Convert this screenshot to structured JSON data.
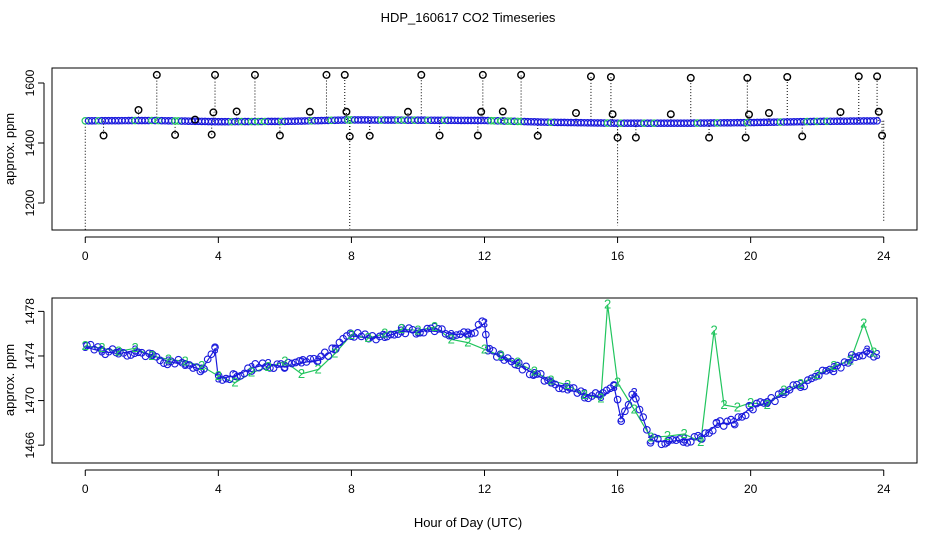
{
  "chart_data": [
    {
      "type": "scatter",
      "panel": "top",
      "title": "HDP_160617  CO2 Timeseries",
      "xlabel": "",
      "ylabel": "approx. ppm",
      "xlim": [
        -1,
        25
      ],
      "ylim": [
        1110,
        1650
      ],
      "xticks": [
        0,
        4,
        8,
        12,
        16,
        20,
        24
      ],
      "yticks": [
        1200,
        1400,
        1600
      ],
      "grid": false,
      "colors": {
        "outlier": "#000000",
        "series1": "#1a1adc",
        "series2": "#22c55e",
        "drop_line": "#000000"
      },
      "baseline": [
        [
          0,
          1474
        ],
        [
          2,
          1475
        ],
        [
          4,
          1471
        ],
        [
          6,
          1472
        ],
        [
          8,
          1477
        ],
        [
          10,
          1476
        ],
        [
          12,
          1475
        ],
        [
          14,
          1469
        ],
        [
          16,
          1466
        ],
        [
          18,
          1466
        ],
        [
          20,
          1468
        ],
        [
          22,
          1472
        ],
        [
          24,
          1474
        ]
      ],
      "outliers_high": [
        [
          1.6,
          1510
        ],
        [
          2.15,
          1627
        ],
        [
          3.3,
          1478
        ],
        [
          3.85,
          1502
        ],
        [
          3.9,
          1627
        ],
        [
          4.55,
          1505
        ],
        [
          5.1,
          1627
        ],
        [
          6.75,
          1504
        ],
        [
          7.25,
          1627
        ],
        [
          7.8,
          1627
        ],
        [
          7.85,
          1504
        ],
        [
          9.7,
          1504
        ],
        [
          10.1,
          1627
        ],
        [
          11.9,
          1504
        ],
        [
          11.95,
          1627
        ],
        [
          12.55,
          1505
        ],
        [
          13.1,
          1627
        ],
        [
          14.75,
          1500
        ],
        [
          15.2,
          1622
        ],
        [
          15.8,
          1620
        ],
        [
          15.85,
          1496
        ],
        [
          17.6,
          1496
        ],
        [
          18.2,
          1617
        ],
        [
          19.9,
          1617
        ],
        [
          19.95,
          1495
        ],
        [
          20.55,
          1500
        ],
        [
          21.1,
          1620
        ],
        [
          22.7,
          1503
        ],
        [
          23.25,
          1622
        ],
        [
          23.8,
          1622
        ],
        [
          23.85,
          1504
        ]
      ],
      "outliers_low": [
        [
          0.55,
          1425
        ],
        [
          2.7,
          1427
        ],
        [
          3.8,
          1428
        ],
        [
          5.85,
          1425
        ],
        [
          7.95,
          1422
        ],
        [
          8.55,
          1424
        ],
        [
          10.65,
          1425
        ],
        [
          11.8,
          1425
        ],
        [
          13.6,
          1424
        ],
        [
          16.0,
          1418
        ],
        [
          16.55,
          1418
        ],
        [
          18.75,
          1418
        ],
        [
          19.85,
          1418
        ],
        [
          21.55,
          1422
        ],
        [
          23.95,
          1425
        ]
      ],
      "drops": [
        [
          0,
          1110
        ],
        [
          7.95,
          1115
        ],
        [
          16.0,
          1125
        ],
        [
          24.0,
          1135
        ]
      ]
    },
    {
      "type": "line",
      "panel": "bottom",
      "xlabel": "Hour of Day (UTC)",
      "ylabel": "approx. ppm",
      "xlim": [
        -1,
        25
      ],
      "ylim": [
        1464.4,
        1479.2
      ],
      "xticks": [
        0,
        4,
        8,
        12,
        16,
        20,
        24
      ],
      "yticks": [
        1466,
        1470,
        1474,
        1478
      ],
      "grid": false,
      "point_label_series1": "3",
      "point_label_series2": "2",
      "series": [
        {
          "name": "3",
          "color": "#1a1adc",
          "points": [
            [
              0.0,
              1474.8
            ],
            [
              0.5,
              1474.4
            ],
            [
              1.0,
              1474.2
            ],
            [
              1.5,
              1474.5
            ],
            [
              2.0,
              1474.1
            ],
            [
              2.5,
              1473.5
            ],
            [
              3.0,
              1473.2
            ],
            [
              3.5,
              1472.8
            ],
            [
              3.9,
              1474.6
            ],
            [
              4.0,
              1472.0
            ],
            [
              4.5,
              1472.2
            ],
            [
              5.0,
              1472.9
            ],
            [
              5.5,
              1473.3
            ],
            [
              6.0,
              1473.0
            ],
            [
              6.5,
              1473.4
            ],
            [
              7.0,
              1473.6
            ],
            [
              7.5,
              1474.6
            ],
            [
              8.0,
              1475.8
            ],
            [
              8.5,
              1475.6
            ],
            [
              9.0,
              1475.7
            ],
            [
              9.5,
              1476.2
            ],
            [
              10.0,
              1476.1
            ],
            [
              10.5,
              1476.5
            ],
            [
              11.0,
              1475.9
            ],
            [
              11.5,
              1476.0
            ],
            [
              12.0,
              1476.9
            ],
            [
              12.1,
              1474.5
            ],
            [
              12.5,
              1473.9
            ],
            [
              13.0,
              1473.2
            ],
            [
              13.5,
              1472.4
            ],
            [
              14.0,
              1471.6
            ],
            [
              14.5,
              1471.0
            ],
            [
              15.0,
              1470.6
            ],
            [
              15.5,
              1470.3
            ],
            [
              15.9,
              1471.2
            ],
            [
              16.1,
              1468.4
            ],
            [
              16.5,
              1470.7
            ],
            [
              17.0,
              1466.4
            ],
            [
              17.5,
              1466.3
            ],
            [
              18.0,
              1466.5
            ],
            [
              18.5,
              1466.6
            ],
            [
              19.0,
              1467.9
            ],
            [
              19.5,
              1468.0
            ],
            [
              20.0,
              1469.4
            ],
            [
              20.5,
              1469.8
            ],
            [
              21.0,
              1470.6
            ],
            [
              21.5,
              1471.4
            ],
            [
              22.0,
              1472.3
            ],
            [
              22.5,
              1472.9
            ],
            [
              23.0,
              1473.7
            ],
            [
              23.5,
              1474.5
            ],
            [
              23.8,
              1474.1
            ]
          ]
        },
        {
          "name": "2",
          "color": "#22c55e",
          "points": [
            [
              0.0,
              1474.9
            ],
            [
              0.5,
              1474.7
            ],
            [
              1.0,
              1474.4
            ],
            [
              1.5,
              1474.7
            ],
            [
              2.0,
              1474.0
            ],
            [
              2.5,
              1473.7
            ],
            [
              3.0,
              1473.5
            ],
            [
              3.5,
              1473.1
            ],
            [
              4.0,
              1472.2
            ],
            [
              4.5,
              1471.6
            ],
            [
              5.0,
              1472.5
            ],
            [
              5.5,
              1473.0
            ],
            [
              6.0,
              1473.5
            ],
            [
              6.5,
              1472.4
            ],
            [
              7.0,
              1472.8
            ],
            [
              7.5,
              1474.2
            ],
            [
              8.0,
              1475.9
            ],
            [
              8.5,
              1475.6
            ],
            [
              9.0,
              1476.0
            ],
            [
              9.5,
              1476.4
            ],
            [
              10.0,
              1476.3
            ],
            [
              10.5,
              1476.6
            ],
            [
              11.0,
              1475.5
            ],
            [
              11.5,
              1475.2
            ],
            [
              12.0,
              1474.6
            ],
            [
              12.5,
              1474.0
            ],
            [
              13.0,
              1473.4
            ],
            [
              13.5,
              1472.6
            ],
            [
              14.0,
              1471.8
            ],
            [
              14.5,
              1471.4
            ],
            [
              15.0,
              1470.5
            ],
            [
              15.5,
              1470.2
            ],
            [
              15.7,
              1478.6
            ],
            [
              16.0,
              1471.6
            ],
            [
              16.5,
              1469.2
            ],
            [
              17.0,
              1466.7
            ],
            [
              17.5,
              1466.8
            ],
            [
              18.0,
              1467.0
            ],
            [
              18.5,
              1466.3
            ],
            [
              18.9,
              1476.3
            ],
            [
              19.2,
              1469.6
            ],
            [
              19.6,
              1469.4
            ],
            [
              20.0,
              1469.8
            ],
            [
              20.5,
              1469.6
            ],
            [
              21.0,
              1470.9
            ],
            [
              21.5,
              1471.5
            ],
            [
              22.0,
              1472.3
            ],
            [
              22.5,
              1473.1
            ],
            [
              23.0,
              1473.6
            ],
            [
              23.4,
              1476.9
            ],
            [
              23.7,
              1474.3
            ]
          ]
        }
      ]
    }
  ]
}
